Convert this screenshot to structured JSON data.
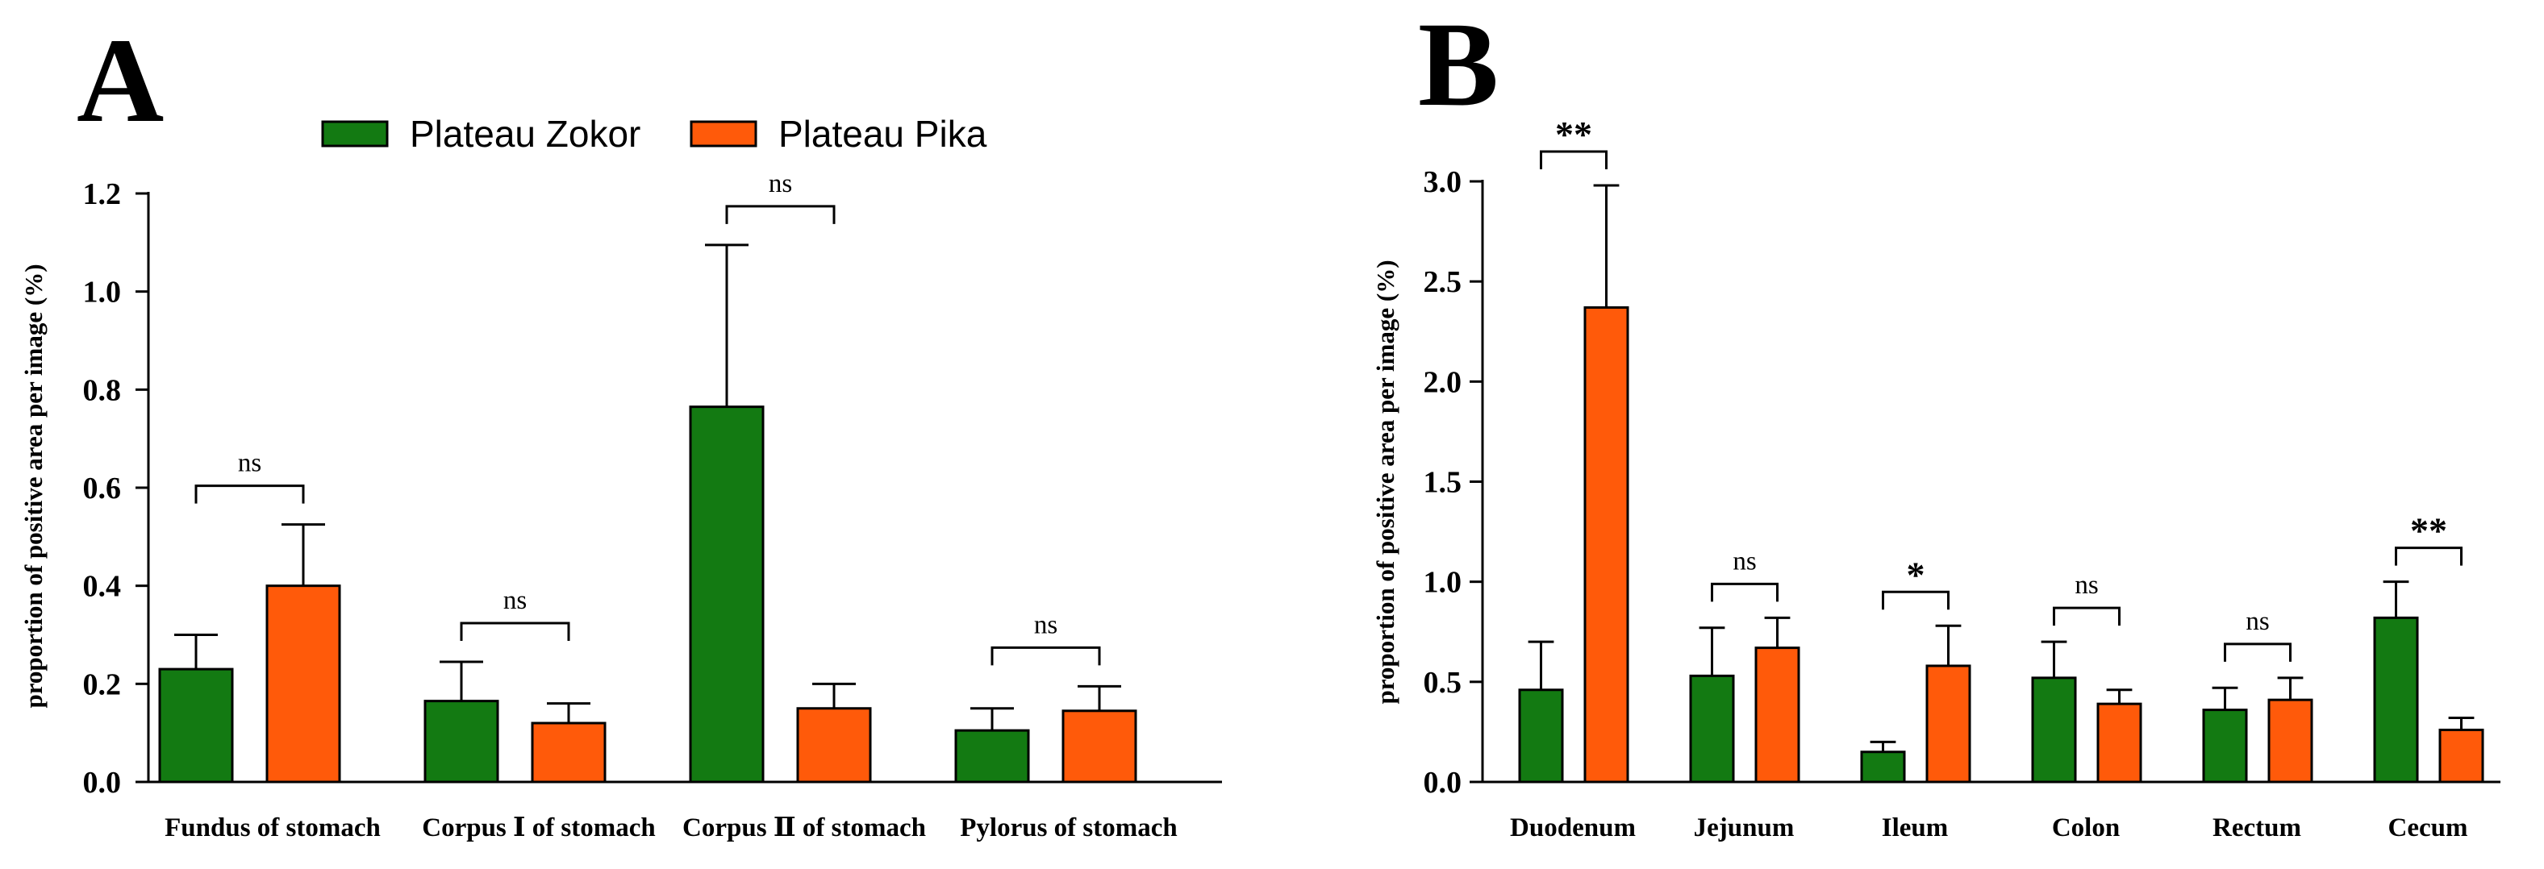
{
  "colors": {
    "zokor": "#137a12",
    "pika": "#ff5a0a",
    "axis": "#000000"
  },
  "legend": {
    "items": [
      {
        "label": "Plateau Zokor",
        "color": "#137a12"
      },
      {
        "label": "Plateau Pika",
        "color": "#ff5a0a"
      }
    ]
  },
  "chart_data": [
    {
      "panel": "A",
      "type": "bar",
      "title": "",
      "xlabel": "",
      "ylabel": "proportion of positive area per image (%)",
      "ylim": [
        0,
        1.2
      ],
      "yticks": [
        0.0,
        0.2,
        0.4,
        0.6,
        0.8,
        1.0,
        1.2
      ],
      "ytick_labels": [
        "0.0",
        "0.2",
        "0.4",
        "0.6",
        "0.8",
        "1.0",
        "1.2"
      ],
      "categories": [
        "Fundus of stomach",
        "Corpus Ⅰ of stomach",
        "Corpus Ⅱ of stomach",
        "Pylorus of stomach"
      ],
      "series": [
        {
          "name": "Plateau Zokor",
          "values": [
            0.23,
            0.165,
            0.765,
            0.105
          ],
          "errors": [
            0.07,
            0.08,
            0.33,
            0.045
          ]
        },
        {
          "name": "Plateau Pika",
          "values": [
            0.4,
            0.12,
            0.15,
            0.145
          ],
          "errors": [
            0.125,
            0.04,
            0.05,
            0.05
          ]
        }
      ],
      "significance": [
        "ns",
        "ns",
        "ns",
        "ns"
      ],
      "legend_position": "top-center"
    },
    {
      "panel": "B",
      "type": "bar",
      "title": "",
      "xlabel": "",
      "ylabel": "proportion of positive area per image (%)",
      "ylim": [
        0,
        3.0
      ],
      "yticks": [
        0.0,
        0.5,
        1.0,
        1.5,
        2.0,
        2.5,
        3.0
      ],
      "ytick_labels": [
        "0.0",
        "0.5",
        "1.0",
        "1.5",
        "2.0",
        "2.5",
        "3.0"
      ],
      "categories": [
        "Duodenum",
        "Jejunum",
        "Ileum",
        "Colon",
        "Rectum",
        "Cecum"
      ],
      "series": [
        {
          "name": "Plateau Zokor",
          "values": [
            0.46,
            0.53,
            0.15,
            0.52,
            0.36,
            0.82
          ],
          "errors": [
            0.24,
            0.24,
            0.05,
            0.18,
            0.11,
            0.18
          ]
        },
        {
          "name": "Plateau Pika",
          "values": [
            2.37,
            0.67,
            0.58,
            0.39,
            0.41,
            0.26
          ],
          "errors": [
            0.61,
            0.15,
            0.2,
            0.07,
            0.11,
            0.06
          ]
        }
      ],
      "significance": [
        "**",
        "ns",
        "*",
        "ns",
        "ns",
        "**"
      ]
    }
  ]
}
